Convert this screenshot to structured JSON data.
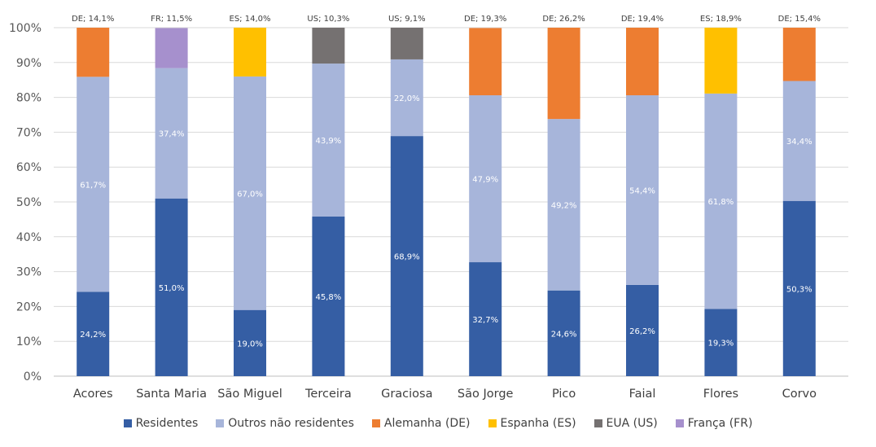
{
  "chart_data": {
    "type": "bar",
    "stacked": true,
    "percent_stacked": true,
    "title": "",
    "xlabel": "",
    "ylabel": "",
    "ylim": [
      0,
      100
    ],
    "yticks": [
      "0%",
      "10%",
      "20%",
      "30%",
      "40%",
      "50%",
      "60%",
      "70%",
      "80%",
      "90%",
      "100%"
    ],
    "grid": true,
    "legend_position": "bottom",
    "categories": [
      "Acores",
      "Santa Maria",
      "São Miguel",
      "Terceira",
      "Graciosa",
      "São Jorge",
      "Pico",
      "Faial",
      "Flores",
      "Corvo"
    ],
    "series": [
      {
        "name": "Residentes",
        "key": "res",
        "color": "#355EA4",
        "values": [
          24.2,
          51.0,
          19.0,
          45.8,
          68.9,
          32.7,
          24.6,
          26.2,
          19.3,
          50.3
        ],
        "labels": [
          "24,2%",
          "51,0%",
          "19,0%",
          "45,8%",
          "68,9%",
          "32,7%",
          "24,6%",
          "26,2%",
          "19,3%",
          "50,3%"
        ]
      },
      {
        "name": "Outros não residentes",
        "key": "out",
        "color": "#A7B5DA",
        "values": [
          61.7,
          37.4,
          67.0,
          43.9,
          22.0,
          47.9,
          49.2,
          54.4,
          61.8,
          34.4
        ],
        "labels": [
          "61,7%",
          "37,4%",
          "67,0%",
          "43,9%",
          "22,0%",
          "47,9%",
          "49,2%",
          "54,4%",
          "61,8%",
          "34,4%"
        ]
      },
      {
        "name": "Alemanha (DE)",
        "key": "DE",
        "color": "#ED7D31",
        "values": [
          14.1,
          0,
          0,
          0,
          0,
          19.3,
          26.2,
          19.4,
          0,
          15.4
        ]
      },
      {
        "name": "Espanha (ES)",
        "key": "ES",
        "color": "#FFC000",
        "values": [
          0,
          0,
          14.0,
          0,
          0,
          0,
          0,
          0,
          18.9,
          0
        ]
      },
      {
        "name": "EUA (US)",
        "key": "US",
        "color": "#757171",
        "values": [
          0,
          0,
          0,
          10.3,
          9.1,
          0,
          0,
          0,
          0,
          0
        ]
      },
      {
        "name": "França (FR)",
        "key": "FR",
        "color": "#A690CD",
        "values": [
          0,
          11.5,
          0,
          0,
          0,
          0,
          0,
          0,
          0,
          0
        ]
      }
    ],
    "top_labels": [
      "DE; 14,1%",
      "FR; 11,5%",
      "ES; 14,0%",
      "US; 10,3%",
      "US; 9,1%",
      "DE; 19,3%",
      "DE; 26,2%",
      "DE; 19,4%",
      "ES; 18,9%",
      "DE; 15,4%"
    ]
  }
}
